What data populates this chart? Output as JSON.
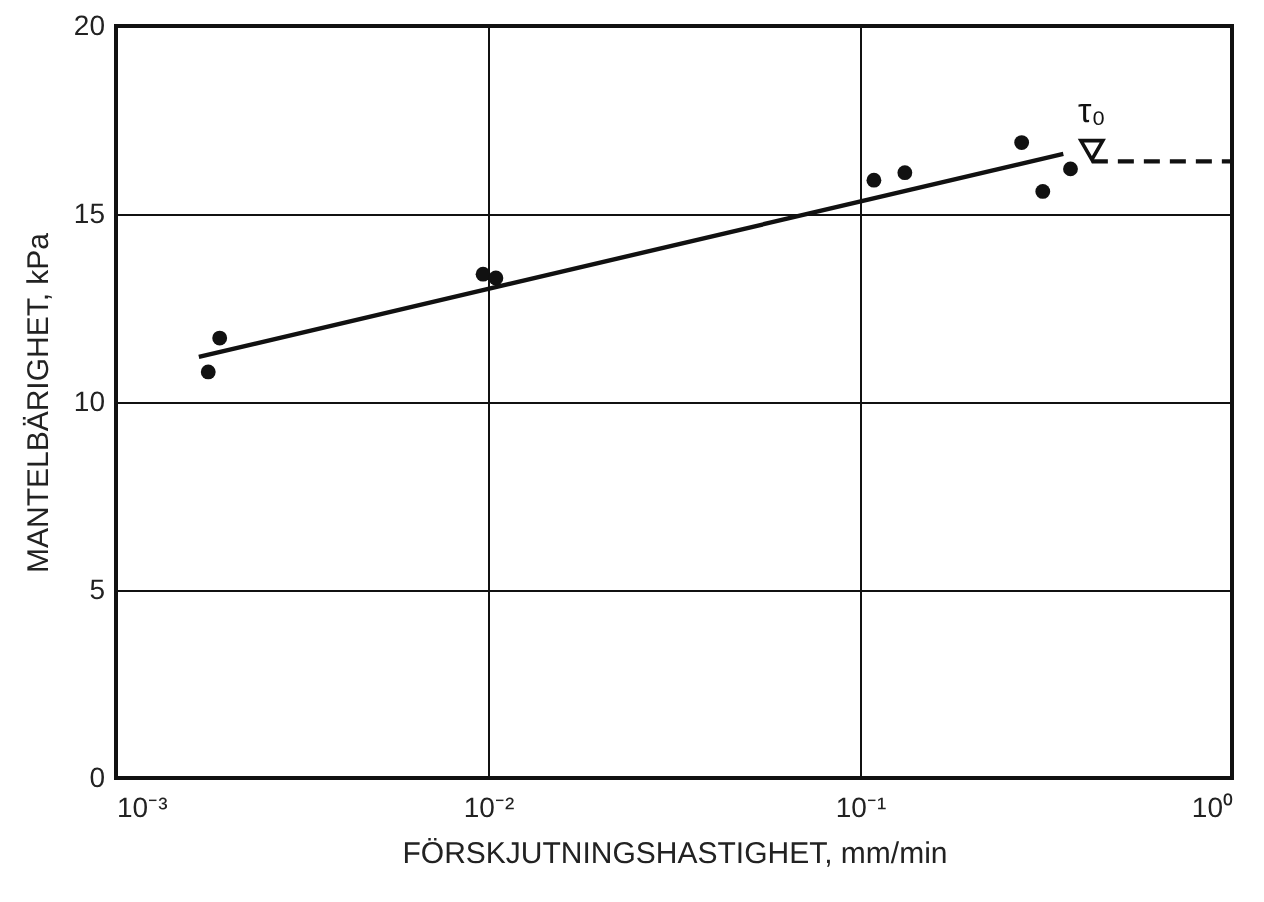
{
  "chart_data": {
    "type": "scatter",
    "xlabel": "FÖRSKJUTNINGSHASTIGHET, mm/min",
    "ylabel": "MANTELBÄRIGHET, kPa",
    "log": "x",
    "grid": true,
    "xlim": [
      0.001,
      1
    ],
    "ylim": [
      0,
      20
    ],
    "xticks": [
      {
        "value": 0.001,
        "label": "10⁻³"
      },
      {
        "value": 0.01,
        "label": "10⁻²"
      },
      {
        "value": 0.1,
        "label": "10⁻¹"
      },
      {
        "value": 1,
        "label": "10⁰"
      }
    ],
    "yticks": [
      0,
      5,
      10,
      15,
      20
    ],
    "series": [
      {
        "marker": "circle",
        "color": "#111111",
        "x": [
          0.00177,
          0.0019,
          0.0097,
          0.0105,
          0.109,
          0.132,
          0.272,
          0.31,
          0.368
        ],
        "values": [
          10.8,
          11.7,
          13.4,
          13.3,
          15.9,
          16.1,
          16.9,
          15.6,
          16.2
        ]
      },
      {
        "type": "line",
        "line_style": "solid",
        "color": "#111111",
        "x": [
          0.00167,
          0.352
        ],
        "values": [
          11.2,
          16.6
        ]
      },
      {
        "marker": "triangle",
        "color": "#111111",
        "x": [
          0.42
        ],
        "values": [
          16.7
        ]
      },
      {
        "type": "line",
        "line_style": "dashed",
        "color": "#111111",
        "x": [
          0.42,
          1
        ],
        "values": [
          16.4,
          16.4
        ]
      }
    ],
    "annotations": [
      {
        "text": "τ₀",
        "x": 0.42,
        "y": 16.7
      }
    ]
  }
}
